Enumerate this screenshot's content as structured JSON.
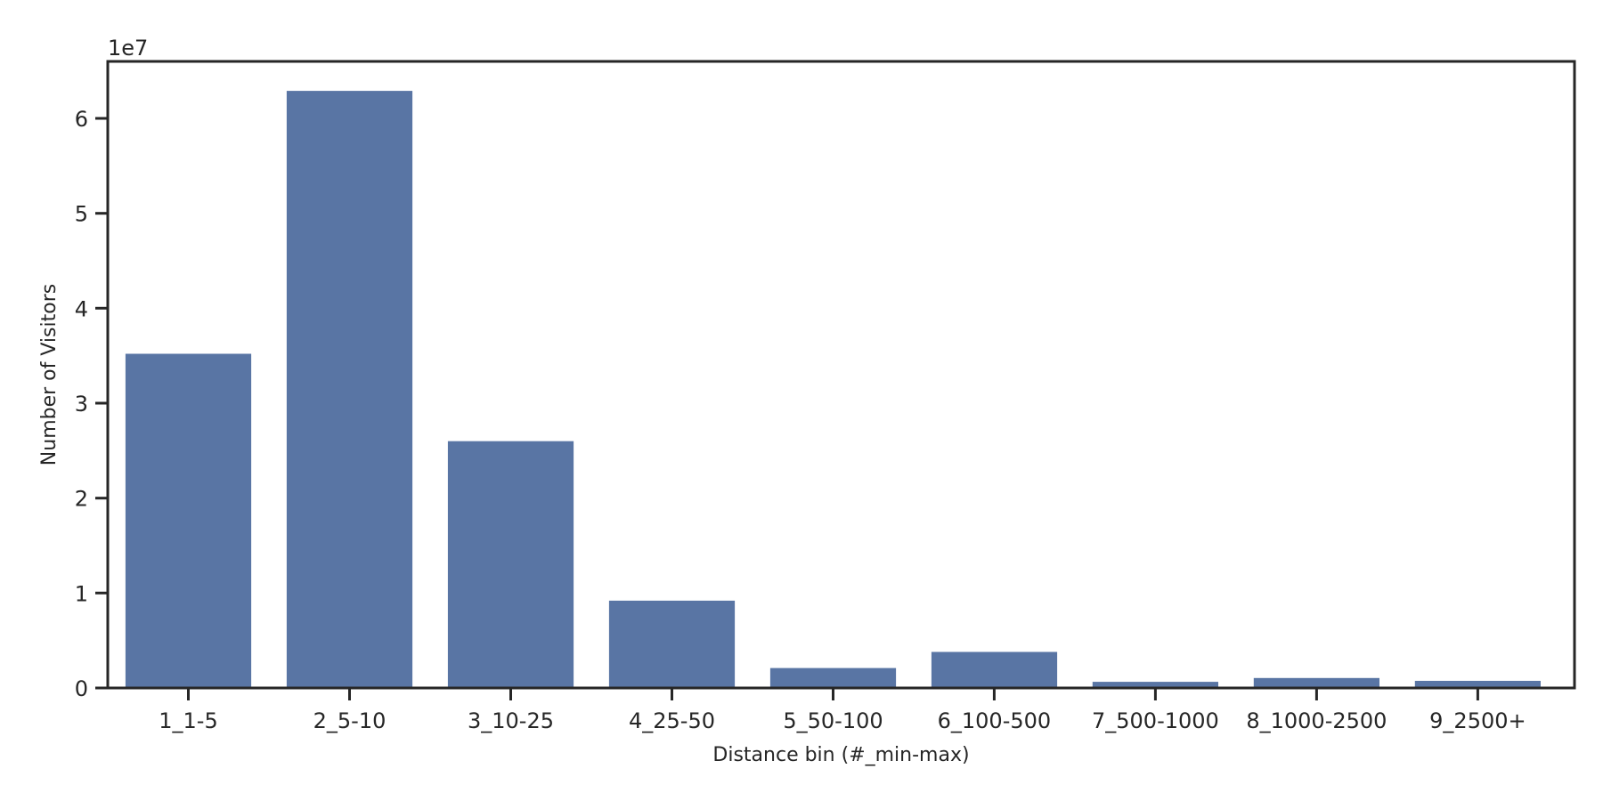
{
  "chart_data": {
    "type": "bar",
    "categories": [
      "1_1-5",
      "2_5-10",
      "3_10-25",
      "4_25-50",
      "5_50-100",
      "6_100-500",
      "7_500-1000",
      "8_1000-2500",
      "9_2500+"
    ],
    "values": [
      35200000,
      62900000,
      26000000,
      9200000,
      2100000,
      3800000,
      650000,
      1050000,
      750000
    ],
    "title": "",
    "xlabel": "Distance bin (#_min-max)",
    "ylabel": "Number of Visitors",
    "ylim": [
      0,
      66000000
    ],
    "yticks": [
      0,
      1,
      2,
      3,
      4,
      5,
      6
    ],
    "yticks_scale": 10000000,
    "y_offset_label": "1e7",
    "bar_color": "#5975a4",
    "grid": false,
    "legend": "none"
  }
}
